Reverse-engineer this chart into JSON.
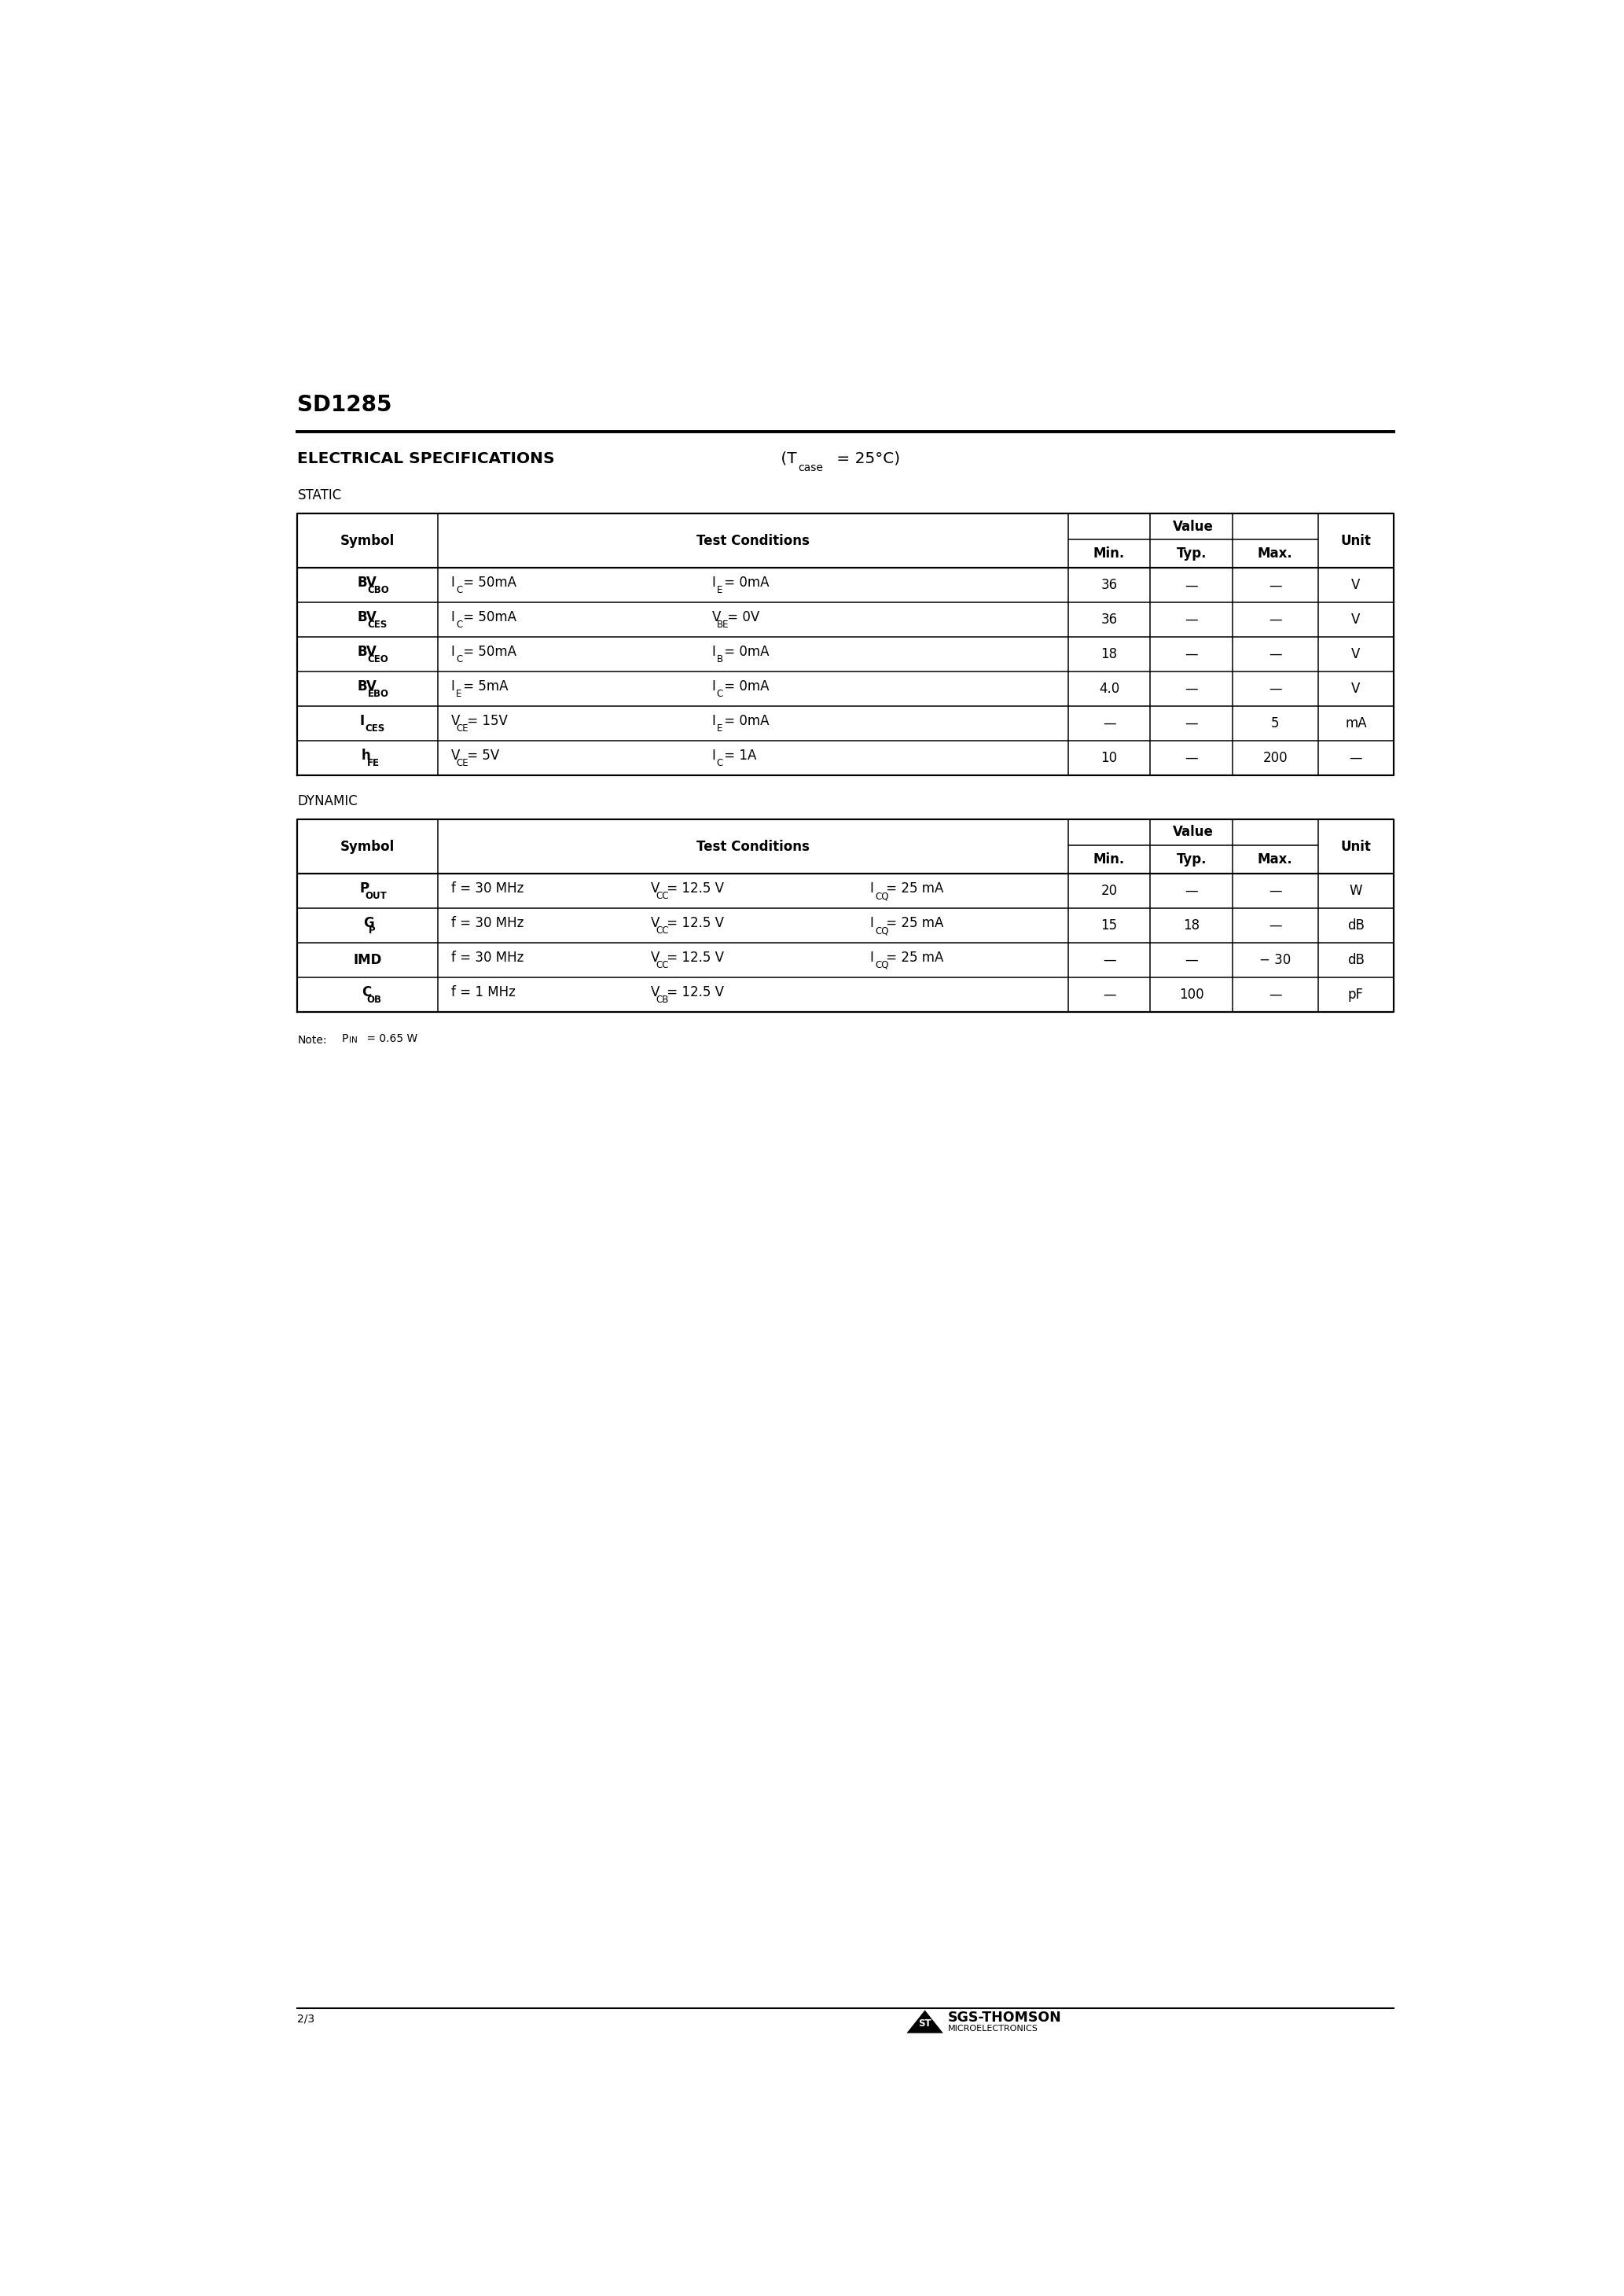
{
  "bg_color": "#ffffff",
  "title": "SD1285",
  "elec_spec": "ELECTRICAL SPECIFICATIONS",
  "tcase": "(T",
  "tcase_sub": "case",
  "tcase_end": " = 25°C)",
  "static_label": "STATIC",
  "dynamic_label": "DYNAMIC",
  "page_number": "2/3",
  "company_name": "SGS-THOMSON",
  "company_sub": "MICROELECTRONICS",
  "note_text": "Note:",
  "note_pin": "P",
  "note_pin_sub": "IN",
  "note_val": " = 0.65 W",
  "static_data": [
    [
      "BV",
      "CBO",
      "I",
      "C",
      "= 50mA",
      "I",
      "E",
      "= 0mA",
      "36",
      "—",
      "—",
      "V"
    ],
    [
      "BV",
      "CES",
      "I",
      "C",
      "= 50mA",
      "V",
      "BE",
      "= 0V",
      "36",
      "—",
      "—",
      "V"
    ],
    [
      "BV",
      "CEO",
      "I",
      "C",
      "= 50mA",
      "I",
      "B",
      "= 0mA",
      "18",
      "—",
      "—",
      "V"
    ],
    [
      "BV",
      "EBO",
      "I",
      "E",
      "= 5mA",
      "I",
      "C",
      "= 0mA",
      "4.0",
      "—",
      "—",
      "V"
    ],
    [
      "I",
      "CES",
      "V",
      "CE",
      "= 15V",
      "I",
      "E",
      "= 0mA",
      "—",
      "—",
      "5",
      "mA"
    ],
    [
      "h",
      "FE",
      "V",
      "CE",
      "= 5V",
      "I",
      "C",
      "= 1A",
      "10",
      "—",
      "200",
      "—"
    ]
  ],
  "dynamic_data": [
    [
      "P",
      "OUT",
      "f",
      "",
      "= 30 MHz",
      "V",
      "CC",
      "= 12.5 V",
      "I",
      "CQ",
      "= 25 mA",
      "20",
      "—",
      "—",
      "W"
    ],
    [
      "G",
      "P",
      "f",
      "",
      "= 30 MHz",
      "V",
      "CC",
      "= 12.5 V",
      "I",
      "CQ",
      "= 25 mA",
      "15",
      "18",
      "—",
      "dB"
    ],
    [
      "IMD",
      "",
      "f",
      "",
      "= 30 MHz",
      "V",
      "CC",
      "= 12.5 V",
      "I",
      "CQ",
      "= 25 mA",
      "—",
      "—",
      "− 30",
      "dB"
    ],
    [
      "C",
      "OB",
      "f",
      "",
      "= 1 MHz",
      "V",
      "CB",
      "= 12.5 V",
      "",
      "",
      "",
      "—",
      "100",
      "—",
      "pF"
    ]
  ]
}
